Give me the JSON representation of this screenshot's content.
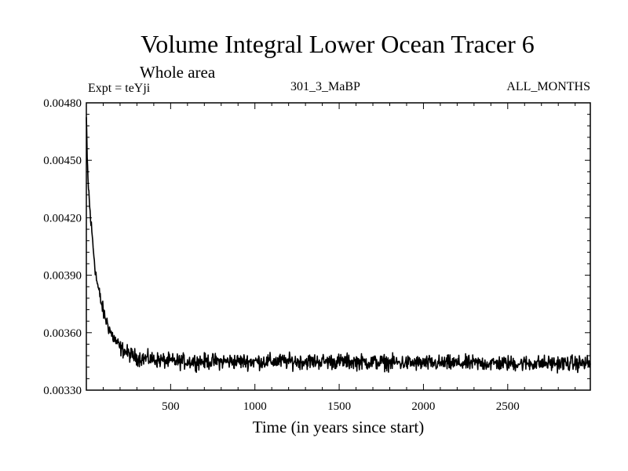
{
  "chart_data": {
    "type": "line",
    "title": "Volume Integral Lower Ocean Tracer 6",
    "subtitle": "Whole area",
    "experiment": "Expt = teYji",
    "run_label": "301_3_MaBP",
    "months_label": "ALL_MONTHS",
    "xlabel": "Time (in years since start)",
    "ylabel": "",
    "xlim": [
      0,
      2990
    ],
    "ylim": [
      0.0033,
      0.0048
    ],
    "xticks": [
      500,
      1000,
      1500,
      2000,
      2500
    ],
    "xtick_labels": [
      "500",
      "1000",
      "1500",
      "2000",
      "2500"
    ],
    "yticks": [
      0.0033,
      0.0036,
      0.0039,
      0.0042,
      0.0045,
      0.0048
    ],
    "ytick_labels": [
      "0.00330",
      "0.00360",
      "0.00390",
      "0.00420",
      "0.00450",
      "0.00480"
    ],
    "series": [
      {
        "name": "Lower Ocean Tracer 6",
        "color": "#000000",
        "x": [
          0,
          5,
          10,
          20,
          30,
          40,
          50,
          60,
          80,
          100,
          120,
          150,
          200,
          250,
          300,
          400,
          500,
          700,
          1000,
          1500,
          2000,
          2500,
          2990
        ],
        "values": [
          0.00472,
          0.0045,
          0.0044,
          0.00425,
          0.00415,
          0.00405,
          0.00396,
          0.00388,
          0.00379,
          0.00371,
          0.00366,
          0.00359,
          0.00352,
          0.00349,
          0.00347,
          0.00346,
          0.00345,
          0.00345,
          0.00345,
          0.00345,
          0.00344,
          0.00344,
          0.00344
        ],
        "noise_amplitude": 6e-05
      }
    ]
  }
}
